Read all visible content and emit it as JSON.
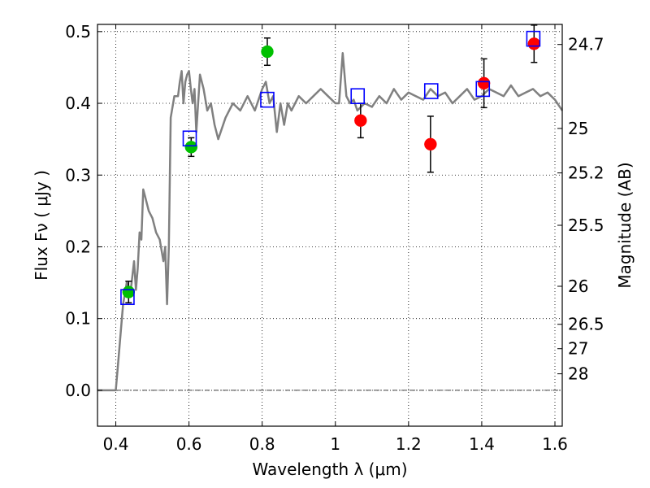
{
  "chart_data": {
    "type": "scatter",
    "xlabel": "Wavelength  λ (μm)",
    "ylabel": "Flux  Fν  ( μJy )",
    "ylabel_right": "Magnitude (AB)",
    "xlim": [
      0.35,
      1.62
    ],
    "ylim": [
      -0.05,
      0.51
    ],
    "grid": true,
    "x_ticks": [
      0.4,
      0.6,
      0.8,
      1.0,
      1.2,
      1.4,
      1.6
    ],
    "x_tick_labels": [
      "0.4",
      "0.6",
      "0.8",
      "1",
      "1.2",
      "1.4",
      "1.6"
    ],
    "y_ticks": [
      0.0,
      0.1,
      0.2,
      0.3,
      0.4,
      0.5
    ],
    "y_tick_labels": [
      "0.0",
      "0.1",
      "0.2",
      "0.3",
      "0.4",
      "0.5"
    ],
    "right_ticks": [
      {
        "label": "24.7",
        "flux": 0.482
      },
      {
        "label": "25",
        "flux": 0.365
      },
      {
        "label": "25.2",
        "flux": 0.303
      },
      {
        "label": "25.5",
        "flux": 0.23
      },
      {
        "label": "26",
        "flux": 0.145
      },
      {
        "label": "26.5",
        "flux": 0.092
      },
      {
        "label": "27",
        "flux": 0.058
      },
      {
        "label": "28",
        "flux": 0.023
      }
    ],
    "colors": {
      "model": "#808080",
      "green": "#00c000",
      "red": "#ff0000",
      "box": "#0000ff",
      "errorbar": "#000000"
    },
    "model_spectrum": {
      "x": [
        0.35,
        0.4,
        0.405,
        0.42,
        0.43,
        0.44,
        0.45,
        0.455,
        0.46,
        0.465,
        0.47,
        0.475,
        0.48,
        0.49,
        0.5,
        0.51,
        0.52,
        0.53,
        0.535,
        0.54,
        0.545,
        0.55,
        0.56,
        0.57,
        0.575,
        0.58,
        0.585,
        0.59,
        0.595,
        0.6,
        0.605,
        0.61,
        0.615,
        0.62,
        0.63,
        0.64,
        0.65,
        0.66,
        0.67,
        0.68,
        0.7,
        0.72,
        0.74,
        0.76,
        0.78,
        0.8,
        0.81,
        0.82,
        0.83,
        0.84,
        0.85,
        0.86,
        0.87,
        0.88,
        0.9,
        0.92,
        0.94,
        0.96,
        0.98,
        1.0,
        1.01,
        1.02,
        1.03,
        1.04,
        1.05,
        1.06,
        1.08,
        1.1,
        1.12,
        1.14,
        1.16,
        1.18,
        1.2,
        1.22,
        1.24,
        1.26,
        1.28,
        1.3,
        1.32,
        1.34,
        1.36,
        1.38,
        1.4,
        1.42,
        1.44,
        1.46,
        1.48,
        1.5,
        1.52,
        1.54,
        1.56,
        1.58,
        1.6,
        1.62
      ],
      "y": [
        0.0,
        0.0,
        0.03,
        0.12,
        0.15,
        0.135,
        0.18,
        0.14,
        0.17,
        0.22,
        0.21,
        0.28,
        0.27,
        0.25,
        0.24,
        0.22,
        0.21,
        0.18,
        0.2,
        0.12,
        0.2,
        0.38,
        0.41,
        0.41,
        0.43,
        0.445,
        0.4,
        0.43,
        0.44,
        0.445,
        0.42,
        0.4,
        0.42,
        0.36,
        0.44,
        0.42,
        0.39,
        0.4,
        0.37,
        0.35,
        0.38,
        0.4,
        0.39,
        0.41,
        0.39,
        0.42,
        0.43,
        0.4,
        0.41,
        0.36,
        0.4,
        0.37,
        0.4,
        0.39,
        0.41,
        0.4,
        0.41,
        0.42,
        0.41,
        0.4,
        0.4,
        0.47,
        0.41,
        0.4,
        0.405,
        0.39,
        0.4,
        0.395,
        0.41,
        0.4,
        0.42,
        0.405,
        0.415,
        0.41,
        0.405,
        0.42,
        0.41,
        0.415,
        0.4,
        0.41,
        0.42,
        0.405,
        0.41,
        0.42,
        0.415,
        0.41,
        0.425,
        0.41,
        0.415,
        0.42,
        0.41,
        0.415,
        0.405,
        0.39
      ]
    },
    "series": [
      {
        "marker": "circle",
        "color": "green",
        "points": [
          {
            "x": 0.435,
            "y": 0.137,
            "err_lo": 0.015,
            "err_hi": 0.015
          },
          {
            "x": 0.606,
            "y": 0.339,
            "err_lo": 0.013,
            "err_hi": 0.013
          },
          {
            "x": 0.814,
            "y": 0.472,
            "err_lo": 0.019,
            "err_hi": 0.019
          }
        ]
      },
      {
        "marker": "circle",
        "color": "red",
        "points": [
          {
            "x": 1.069,
            "y": 0.376,
            "err_lo": 0.024,
            "err_hi": 0.024
          },
          {
            "x": 1.26,
            "y": 0.343,
            "err_lo": 0.039,
            "err_hi": 0.039
          },
          {
            "x": 1.406,
            "y": 0.428,
            "err_lo": 0.034,
            "err_hi": 0.034
          },
          {
            "x": 1.543,
            "y": 0.483,
            "err_lo": 0.026,
            "err_hi": 0.026
          }
        ]
      },
      {
        "marker": "square",
        "color": "box",
        "points": [
          {
            "x": 0.432,
            "y": 0.13
          },
          {
            "x": 0.602,
            "y": 0.351
          },
          {
            "x": 0.814,
            "y": 0.405
          },
          {
            "x": 1.061,
            "y": 0.41
          },
          {
            "x": 1.262,
            "y": 0.417
          },
          {
            "x": 1.403,
            "y": 0.42
          },
          {
            "x": 1.541,
            "y": 0.49
          }
        ]
      }
    ]
  }
}
